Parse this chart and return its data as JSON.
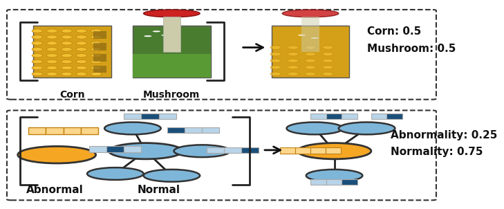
{
  "fig_width": 6.4,
  "fig_height": 2.97,
  "bg_color": "#ffffff",
  "top_panel": {
    "title": "",
    "corn_label": "Corn",
    "mushroom_label": "Mushroom",
    "result_text": "Corn: 0.5\nMushroom: 0.5",
    "bracket_color": "#222222",
    "arrow_color": "#111111"
  },
  "bottom_panel": {
    "abnormal_label": "Abnormal",
    "normal_label": "Normal",
    "result_text": "Abnormality: 0.25\nNormality: 0.75",
    "node_color_blue": "#7eb6d9",
    "node_color_orange": "#f5a623",
    "node_edge_color": "#222222",
    "feature_blue_dark": "#1a4f7a",
    "feature_blue_light": "#b8d4e8",
    "feature_orange": "#f5a623",
    "feature_orange_light": "#fcd68a"
  },
  "dashed_border_color": "#333333",
  "text_color": "#111111",
  "label_fontsize": 10,
  "result_fontsize": 10
}
